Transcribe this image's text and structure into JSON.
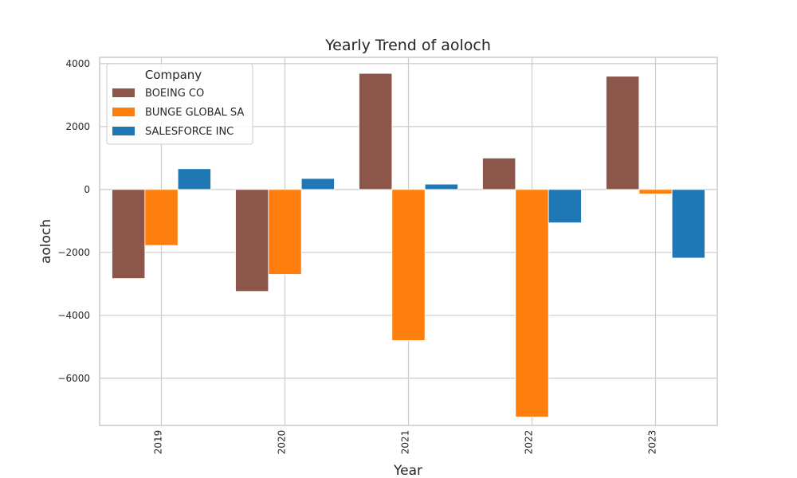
{
  "chart_data": {
    "type": "bar",
    "title": "Yearly Trend of aoloch",
    "xlabel": "Year",
    "ylabel": "aoloch",
    "categories": [
      "2019",
      "2020",
      "2021",
      "2022",
      "2023"
    ],
    "ylim": [
      -7500,
      4200
    ],
    "yticks": [
      4000,
      2000,
      0,
      -2000,
      -4000,
      -6000
    ],
    "ytick_labels": [
      "4000",
      "2000",
      "0",
      "−2000",
      "−4000",
      "−6000"
    ],
    "grid": true,
    "legend": {
      "title": "Company",
      "placement": "top-left"
    },
    "series": [
      {
        "name": "BOEING CO",
        "color": "#8c564b",
        "values": [
          -2830,
          -3240,
          3690,
          1000,
          3600
        ]
      },
      {
        "name": "BUNGE GLOBAL SA",
        "color": "#ff7f0e",
        "values": [
          -1780,
          -2700,
          -4800,
          -7230,
          -140
        ]
      },
      {
        "name": "SALESFORCE INC",
        "color": "#1f77b4",
        "values": [
          660,
          350,
          170,
          -1060,
          -2180
        ]
      }
    ]
  }
}
